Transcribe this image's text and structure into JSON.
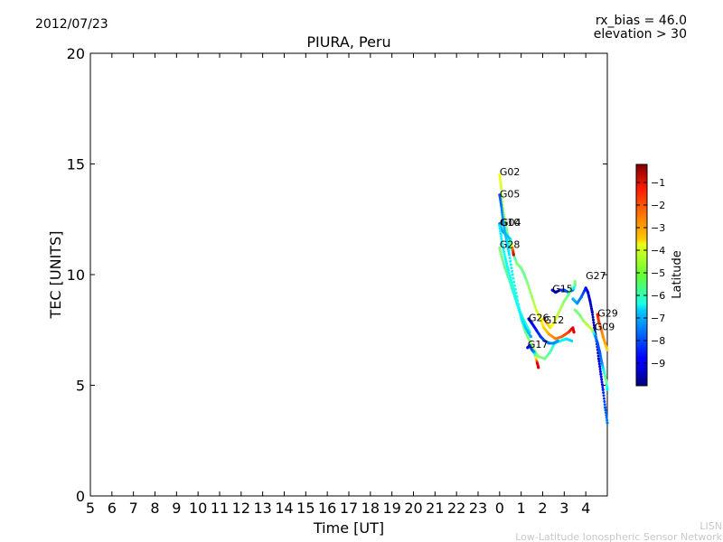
{
  "header": {
    "date": "2012/07/23",
    "rx_bias": "rx_bias = 46.0",
    "elevation": "elevation > 30"
  },
  "watermark": {
    "line1": "LISN",
    "line2": "Low-Latitude Ionospheric Sensor Network"
  },
  "chart_data": {
    "type": "scatter",
    "title": "PIURA, Peru",
    "xlabel": "Time [UT]",
    "ylabel": "TEC [UNITS]",
    "xlim": [
      5,
      29
    ],
    "ylim": [
      0,
      20
    ],
    "x_ticks": [
      "5",
      "6",
      "7",
      "8",
      "9",
      "10",
      "11",
      "12",
      "13",
      "14",
      "15",
      "16",
      "17",
      "18",
      "19",
      "20",
      "21",
      "22",
      "23",
      "0",
      "1",
      "2",
      "3",
      "4"
    ],
    "y_ticks": [
      0,
      5,
      10,
      15,
      20
    ],
    "grid": false,
    "colorbar": {
      "label": "Latitude",
      "range": [
        -10,
        -0.2
      ],
      "ticks": [
        "−1",
        "−2",
        "−3",
        "−4",
        "−5",
        "−6",
        "−7",
        "−8",
        "−9"
      ],
      "colormap": "jet"
    },
    "series": [
      {
        "name": "G02",
        "label_at": [
          24.0,
          14.5
        ],
        "points": [
          [
            24.0,
            14.5,
            -4.0
          ],
          [
            24.08,
            13.9,
            -4.3
          ],
          [
            24.15,
            13.0,
            -4.7
          ],
          [
            24.25,
            12.4,
            -5.0
          ],
          [
            24.35,
            11.9,
            -5.3
          ],
          [
            24.45,
            11.5,
            -5.6
          ],
          [
            24.55,
            11.2,
            -5.8
          ],
          [
            24.65,
            10.9,
            -6.0
          ],
          [
            24.8,
            10.5,
            -5.0
          ],
          [
            25.0,
            10.3,
            -5.2
          ],
          [
            25.15,
            10.0,
            -5.3
          ],
          [
            25.3,
            9.6,
            -5.0
          ],
          [
            25.5,
            9.0,
            -4.8
          ],
          [
            25.7,
            8.4,
            -4.3
          ],
          [
            25.9,
            8.0,
            -4.0
          ],
          [
            26.05,
            7.6,
            -3.5
          ],
          [
            26.3,
            7.3,
            -3.0
          ],
          [
            26.6,
            7.1,
            -2.6
          ],
          [
            26.9,
            7.2,
            -2.3
          ],
          [
            27.2,
            7.4,
            -2.0
          ],
          [
            27.4,
            7.6,
            -1.3
          ],
          [
            27.45,
            7.4,
            -1.0
          ]
        ]
      },
      {
        "name": "G05",
        "label_at": [
          24.0,
          13.5
        ],
        "points": [
          [
            24.0,
            13.6,
            -8.0
          ],
          [
            24.08,
            13.1,
            -7.6
          ],
          [
            24.15,
            12.5,
            -7.3
          ],
          [
            24.25,
            11.9,
            -7.0
          ],
          [
            24.35,
            11.4,
            -6.7
          ],
          [
            24.45,
            10.9,
            -6.5
          ],
          [
            24.6,
            10.0,
            -6.2
          ],
          [
            24.8,
            9.0,
            -6.0
          ],
          [
            25.0,
            8.0,
            -5.7
          ],
          [
            25.2,
            7.4,
            -5.3
          ],
          [
            25.4,
            7.0,
            -5.0
          ],
          [
            25.6,
            6.6,
            -4.7
          ],
          [
            25.8,
            6.3,
            -5.0
          ],
          [
            26.1,
            6.2,
            -5.2
          ],
          [
            26.35,
            6.5,
            -5.5
          ],
          [
            26.55,
            6.9,
            -6.0
          ],
          [
            26.8,
            7.0,
            -6.3
          ],
          [
            27.1,
            7.1,
            -6.5
          ],
          [
            27.35,
            7.0,
            -6.7
          ]
        ]
      },
      {
        "name": "G10",
        "label_at": [
          24.0,
          12.2
        ],
        "points": [
          [
            24.0,
            12.3,
            -7.5
          ],
          [
            24.1,
            12.0,
            -7.3
          ],
          [
            24.3,
            11.8,
            -7.0
          ],
          [
            24.5,
            11.6,
            -6.8
          ],
          [
            24.6,
            11.2,
            -3.0
          ],
          [
            24.65,
            10.9,
            -1.0
          ]
        ]
      },
      {
        "name": "G04",
        "label_at": [
          24.05,
          12.2
        ],
        "points": [
          [
            24.0,
            12.2,
            -6.5
          ],
          [
            24.1,
            11.5,
            -6.4
          ],
          [
            24.25,
            10.8,
            -6.3
          ],
          [
            24.4,
            10.2,
            -6.3
          ],
          [
            24.6,
            9.5,
            -6.2
          ],
          [
            24.8,
            8.8,
            -6.1
          ],
          [
            25.0,
            8.2,
            -6.0
          ],
          [
            25.2,
            7.8,
            -5.9
          ],
          [
            25.4,
            7.4,
            -6.0
          ]
        ]
      },
      {
        "name": "G28",
        "label_at": [
          24.0,
          11.2
        ],
        "points": [
          [
            24.0,
            11.2,
            -5.0
          ],
          [
            24.1,
            10.8,
            -5.2
          ],
          [
            24.25,
            10.3,
            -5.4
          ],
          [
            24.4,
            9.9,
            -5.6
          ],
          [
            24.6,
            9.3,
            -5.9
          ],
          [
            24.8,
            8.7,
            -6.2
          ],
          [
            25.0,
            8.1,
            -6.5
          ],
          [
            25.2,
            7.6,
            -6.8
          ],
          [
            25.45,
            7.2,
            -7.1
          ]
        ]
      },
      {
        "name": "G15",
        "label_at": [
          26.45,
          9.2
        ],
        "points": [
          [
            26.45,
            9.3,
            -9.3
          ],
          [
            26.6,
            9.2,
            -9.0
          ],
          [
            26.8,
            9.3,
            -8.5
          ],
          [
            27.0,
            9.3,
            -8.2
          ],
          [
            27.2,
            9.2,
            -7.8
          ],
          [
            27.4,
            9.3,
            -7.6
          ],
          [
            27.5,
            9.5,
            -5.5
          ],
          [
            27.5,
            9.7,
            -5.0
          ]
        ]
      },
      {
        "name": "G27",
        "label_at": [
          28.0,
          9.8
        ],
        "points": [
          [
            27.4,
            8.9,
            -7.0
          ],
          [
            27.6,
            8.7,
            -7.3
          ],
          [
            27.8,
            9.0,
            -7.8
          ],
          [
            28.0,
            9.4,
            -8.5
          ],
          [
            28.1,
            9.2,
            -9.0
          ],
          [
            28.2,
            8.8,
            -9.2
          ],
          [
            28.3,
            8.3,
            -9.4
          ],
          [
            28.4,
            7.6,
            -9.5
          ],
          [
            28.5,
            7.0,
            -9.5
          ],
          [
            28.6,
            6.2,
            -9.3
          ],
          [
            28.7,
            5.5,
            -8.8
          ],
          [
            28.8,
            4.8,
            -8.5
          ],
          [
            28.9,
            4.0,
            -8.0
          ],
          [
            29.0,
            3.3,
            -7.6
          ]
        ]
      },
      {
        "name": "G29",
        "label_at": [
          28.55,
          8.1
        ],
        "points": [
          [
            28.55,
            8.2,
            -1.5
          ],
          [
            28.6,
            7.9,
            -2.0
          ],
          [
            28.7,
            7.6,
            -2.5
          ],
          [
            28.8,
            7.2,
            -2.8
          ],
          [
            28.9,
            6.9,
            -3.0
          ],
          [
            29.0,
            6.6,
            -3.5
          ]
        ]
      },
      {
        "name": "G09",
        "label_at": [
          28.4,
          7.5
        ],
        "points": [
          [
            27.5,
            8.4,
            -5.0
          ],
          [
            27.7,
            8.2,
            -5.2
          ],
          [
            27.9,
            7.9,
            -4.8
          ],
          [
            28.1,
            7.7,
            -4.5
          ],
          [
            28.3,
            7.5,
            -4.3
          ],
          [
            28.45,
            7.2,
            -7.5
          ],
          [
            28.55,
            6.9,
            -8.0
          ],
          [
            28.65,
            6.5,
            -8.0
          ],
          [
            28.75,
            6.0,
            -7.5
          ],
          [
            28.85,
            5.6,
            -6.0
          ],
          [
            28.95,
            5.2,
            -5.0
          ],
          [
            29.0,
            4.8,
            -6.5
          ]
        ]
      },
      {
        "name": "G26",
        "label_at": [
          25.35,
          7.9
        ],
        "points": [
          [
            25.35,
            8.0,
            -9.3
          ],
          [
            25.5,
            7.8,
            -9.0
          ],
          [
            25.7,
            7.5,
            -8.6
          ],
          [
            25.9,
            7.2,
            -8.3
          ],
          [
            26.1,
            7.0,
            -8.0
          ],
          [
            26.3,
            6.9,
            -7.7
          ],
          [
            26.5,
            6.9,
            -7.5
          ],
          [
            26.7,
            7.0,
            -7.3
          ]
        ]
      },
      {
        "name": "G12",
        "label_at": [
          26.05,
          7.8
        ],
        "points": [
          [
            26.05,
            8.0,
            -3.0
          ],
          [
            26.2,
            7.8,
            -3.3
          ],
          [
            26.35,
            7.6,
            -3.6
          ],
          [
            26.5,
            7.8,
            -4.0
          ],
          [
            26.65,
            8.1,
            -4.3
          ],
          [
            26.8,
            8.4,
            -4.6
          ],
          [
            27.0,
            8.8,
            -5.0
          ],
          [
            27.2,
            9.1,
            -5.3
          ],
          [
            27.35,
            9.4,
            -5.6
          ]
        ]
      },
      {
        "name": "G17",
        "label_at": [
          25.3,
          6.7
        ],
        "points": [
          [
            25.3,
            6.7,
            -9.0
          ],
          [
            25.4,
            6.8,
            -8.5
          ],
          [
            25.5,
            6.6,
            -8.0
          ],
          [
            25.6,
            6.5,
            -7.5
          ],
          [
            25.75,
            6.0,
            -1.2
          ],
          [
            25.8,
            5.8,
            -1.0
          ]
        ]
      }
    ]
  }
}
